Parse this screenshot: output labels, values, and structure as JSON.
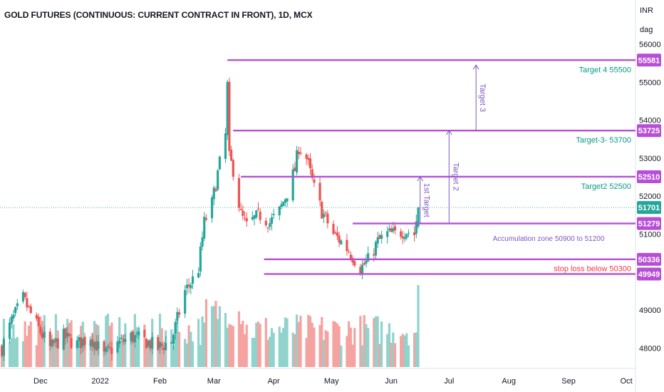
{
  "title": "GOLD FUTURES (CONTINUOUS: CURRENT CONTRACT IN FRONT), 1D, MCX",
  "axis_unit": {
    "currency": "INR",
    "unit": "dag"
  },
  "colors": {
    "up": "#26a69a",
    "down": "#ef5350",
    "vol_up": "#8fd3cc",
    "vol_down": "#f5a3a1",
    "purple": "#b74fd6",
    "purple_line": "#7e57c2",
    "target_text": "#089981",
    "stop_text": "#f23645",
    "last_price_line": "#26a69a"
  },
  "chart_data": {
    "type": "candlestick",
    "y_ticks": [
      48000,
      49000,
      50000,
      51000,
      52000,
      53000,
      54000,
      55000,
      56000
    ],
    "ylim": [
      47500,
      56600
    ],
    "x_ticks": [
      "Dec",
      "2022",
      "Feb",
      "Mar",
      "Apr",
      "May",
      "Jun",
      "Jul",
      "Aug",
      "Sep",
      "Oct"
    ],
    "x_tick_dates": [
      "2021-12-01",
      "2022-01-01",
      "2022-02-01",
      "2022-03-01",
      "2022-04-01",
      "2022-05-01",
      "2022-06-01",
      "2022-07-01",
      "2022-08-01",
      "2022-09-01",
      "2022-10-01"
    ],
    "xlim": [
      "2021-11-10",
      "2022-10-05"
    ],
    "price_series": [
      {
        "date": "2021-11-11",
        "close": 48000
      },
      {
        "date": "2021-11-16",
        "close": 48700
      },
      {
        "date": "2021-11-22",
        "close": 49300
      },
      {
        "date": "2021-11-29",
        "close": 48600
      },
      {
        "date": "2021-12-06",
        "close": 48000
      },
      {
        "date": "2021-12-13",
        "close": 48300
      },
      {
        "date": "2021-12-20",
        "close": 48100
      },
      {
        "date": "2021-12-27",
        "close": 48300
      },
      {
        "date": "2022-01-03",
        "close": 47800
      },
      {
        "date": "2022-01-10",
        "close": 48100
      },
      {
        "date": "2022-01-17",
        "close": 48300
      },
      {
        "date": "2022-01-24",
        "close": 48200
      },
      {
        "date": "2022-01-31",
        "close": 48000
      },
      {
        "date": "2022-02-07",
        "close": 48200
      },
      {
        "date": "2022-02-14",
        "close": 49500
      },
      {
        "date": "2022-02-18",
        "close": 49800
      },
      {
        "date": "2022-02-21",
        "close": 50100
      },
      {
        "date": "2022-02-24",
        "close": 51300
      },
      {
        "date": "2022-02-28",
        "close": 51800
      },
      {
        "date": "2022-03-03",
        "close": 52600
      },
      {
        "date": "2022-03-07",
        "close": 53600
      },
      {
        "date": "2022-03-08",
        "close": 54900
      },
      {
        "date": "2022-03-09",
        "close": 53000
      },
      {
        "date": "2022-03-11",
        "close": 52700
      },
      {
        "date": "2022-03-15",
        "close": 51500
      },
      {
        "date": "2022-03-18",
        "close": 51200
      },
      {
        "date": "2022-03-22",
        "close": 51400
      },
      {
        "date": "2022-03-25",
        "close": 51500
      },
      {
        "date": "2022-03-30",
        "close": 51300
      },
      {
        "date": "2022-04-04",
        "close": 51600
      },
      {
        "date": "2022-04-08",
        "close": 52100
      },
      {
        "date": "2022-04-12",
        "close": 52700
      },
      {
        "date": "2022-04-14",
        "close": 53300
      },
      {
        "date": "2022-04-18",
        "close": 53000
      },
      {
        "date": "2022-04-22",
        "close": 52200
      },
      {
        "date": "2022-04-26",
        "close": 51600
      },
      {
        "date": "2022-05-02",
        "close": 51000
      },
      {
        "date": "2022-05-06",
        "close": 50800
      },
      {
        "date": "2022-05-11",
        "close": 50500
      },
      {
        "date": "2022-05-16",
        "close": 50100
      },
      {
        "date": "2022-05-20",
        "close": 50300
      },
      {
        "date": "2022-05-25",
        "close": 50800
      },
      {
        "date": "2022-05-30",
        "close": 51000
      },
      {
        "date": "2022-06-03",
        "close": 51000
      },
      {
        "date": "2022-06-08",
        "close": 51100
      },
      {
        "date": "2022-06-13",
        "close": 51000
      },
      {
        "date": "2022-06-15",
        "close": 51701
      }
    ],
    "volume_bars_count": 150,
    "last_price": 51701,
    "levels": [
      {
        "value": 55581,
        "label": "Target 4 55500",
        "start": "2022-03-08",
        "color": "purple",
        "text_color": "target_text"
      },
      {
        "value": 53725,
        "label": "Target-3- 53700",
        "start": "2022-03-11",
        "color": "purple",
        "text_color": "target_text"
      },
      {
        "value": 52510,
        "label": "Target2 52500",
        "start": "2022-03-15",
        "color": "purple",
        "text_color": "target_text"
      },
      {
        "value": 51279,
        "label": "",
        "start": "2022-05-12",
        "color": "purple",
        "text_color": "target_text"
      },
      {
        "value": 50336,
        "label": "Accumulation zone 50900 to 51200",
        "start": "2022-03-27",
        "color": "purple",
        "text_color": "purple_line"
      },
      {
        "value": 49949,
        "label": "stop loss below 50300",
        "start": "2022-03-27",
        "color": "purple",
        "text_color": "stop_text"
      }
    ],
    "price_tags": [
      55581,
      53725,
      52510,
      51701,
      51279,
      50336,
      49949
    ],
    "arrows": [
      {
        "label": "1st Target",
        "date": "2022-06-16",
        "from": 51279,
        "to": 52510
      },
      {
        "label": "Target 2",
        "date": "2022-07-01",
        "from": 51300,
        "to": 53725
      },
      {
        "label": "Target 3",
        "date": "2022-07-15",
        "from": 53725,
        "to": 55450
      }
    ]
  }
}
